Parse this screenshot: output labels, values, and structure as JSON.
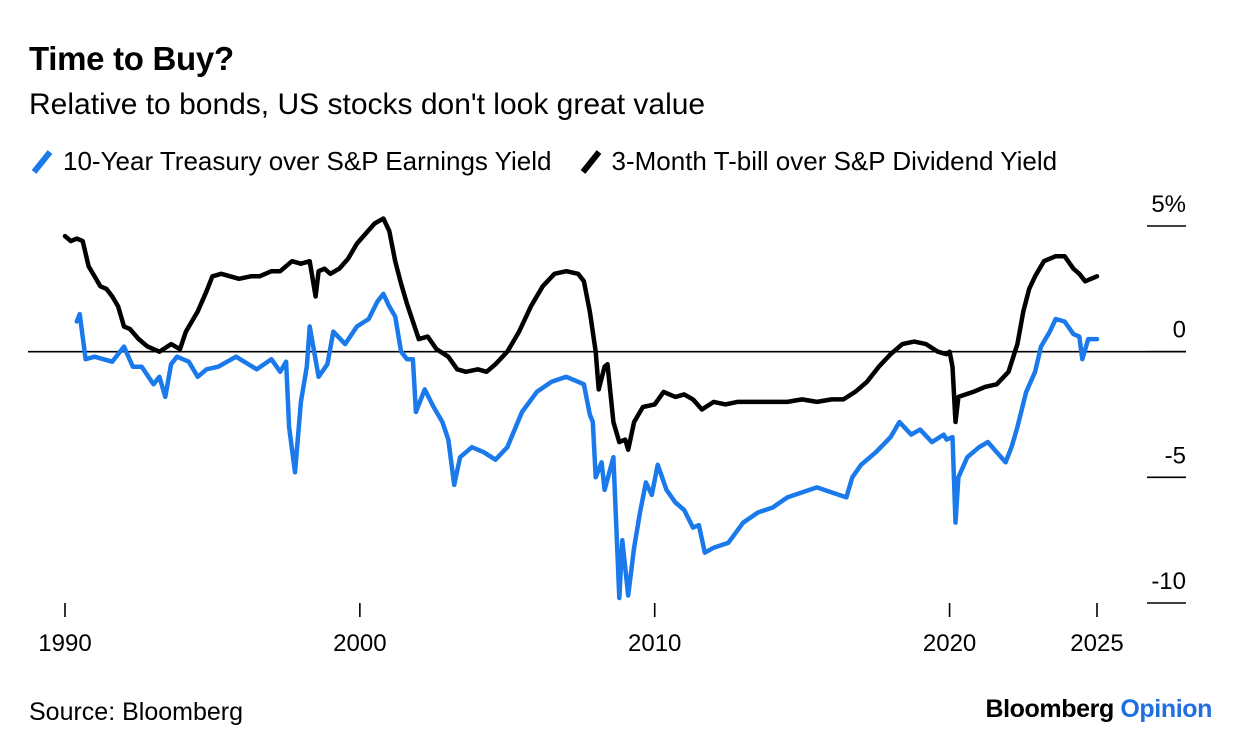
{
  "header": {
    "title": "Time to Buy?",
    "subtitle": "Relative to bonds, US stocks don't look great value"
  },
  "legend": [
    {
      "label": "10-Year Treasury over S&P Earnings Yield",
      "color": "#1a7aeb"
    },
    {
      "label": "3-Month T-bill over S&P Dividend Yield",
      "color": "#000000"
    }
  ],
  "footer": {
    "source": "Source: Bloomberg",
    "brand_primary": "Bloomberg",
    "brand_secondary": "Opinion"
  },
  "chart_data": {
    "type": "line",
    "title": "Time to Buy?",
    "subtitle": "Relative to bonds, US stocks don't look great value",
    "xlabel": "",
    "ylabel": "",
    "xlim": [
      1990,
      2025
    ],
    "ylim": [
      -10,
      5
    ],
    "x_ticks": [
      1990,
      2000,
      2010,
      2020,
      2025
    ],
    "y_ticks": [
      {
        "value": 5,
        "label": "5%"
      },
      {
        "value": 0,
        "label": "0"
      },
      {
        "value": -5,
        "label": "-5"
      },
      {
        "value": -10,
        "label": "-10"
      }
    ],
    "zero_line": true,
    "grid": false,
    "legend_position": "top-left",
    "series": [
      {
        "name": "10-Year Treasury over S&P Earnings Yield",
        "color": "#1a7aeb",
        "points": [
          [
            1990.4,
            1.2
          ],
          [
            1990.5,
            1.5
          ],
          [
            1990.7,
            -0.3
          ],
          [
            1991.0,
            -0.2
          ],
          [
            1991.3,
            -0.3
          ],
          [
            1991.6,
            -0.4
          ],
          [
            1992.0,
            0.2
          ],
          [
            1992.3,
            -0.6
          ],
          [
            1992.6,
            -0.6
          ],
          [
            1993.0,
            -1.3
          ],
          [
            1993.2,
            -1.0
          ],
          [
            1993.4,
            -1.8
          ],
          [
            1993.6,
            -0.5
          ],
          [
            1993.8,
            -0.2
          ],
          [
            1994.2,
            -0.4
          ],
          [
            1994.5,
            -1.0
          ],
          [
            1994.8,
            -0.7
          ],
          [
            1995.2,
            -0.6
          ],
          [
            1995.8,
            -0.2
          ],
          [
            1996.5,
            -0.7
          ],
          [
            1997.0,
            -0.3
          ],
          [
            1997.3,
            -0.8
          ],
          [
            1997.5,
            -0.4
          ],
          [
            1997.6,
            -3.0
          ],
          [
            1997.8,
            -4.8
          ],
          [
            1998.0,
            -2.0
          ],
          [
            1998.2,
            -0.6
          ],
          [
            1998.3,
            1.0
          ],
          [
            1998.6,
            -1.0
          ],
          [
            1998.9,
            -0.5
          ],
          [
            1999.1,
            0.8
          ],
          [
            1999.5,
            0.3
          ],
          [
            1999.9,
            1.0
          ],
          [
            2000.3,
            1.3
          ],
          [
            2000.6,
            2.0
          ],
          [
            2000.8,
            2.3
          ],
          [
            2001.0,
            1.8
          ],
          [
            2001.2,
            1.4
          ],
          [
            2001.4,
            0.0
          ],
          [
            2001.6,
            -0.3
          ],
          [
            2001.8,
            -0.3
          ],
          [
            2001.9,
            -2.4
          ],
          [
            2002.2,
            -1.5
          ],
          [
            2002.5,
            -2.2
          ],
          [
            2002.8,
            -2.8
          ],
          [
            2003.0,
            -3.5
          ],
          [
            2003.2,
            -5.3
          ],
          [
            2003.4,
            -4.2
          ],
          [
            2003.8,
            -3.8
          ],
          [
            2004.2,
            -4.0
          ],
          [
            2004.6,
            -4.3
          ],
          [
            2005.0,
            -3.8
          ],
          [
            2005.5,
            -2.4
          ],
          [
            2006.0,
            -1.6
          ],
          [
            2006.5,
            -1.2
          ],
          [
            2007.0,
            -1.0
          ],
          [
            2007.4,
            -1.2
          ],
          [
            2007.6,
            -1.3
          ],
          [
            2007.8,
            -2.5
          ],
          [
            2007.9,
            -2.8
          ],
          [
            2008.0,
            -5.0
          ],
          [
            2008.2,
            -4.4
          ],
          [
            2008.3,
            -5.5
          ],
          [
            2008.6,
            -4.2
          ],
          [
            2008.8,
            -9.8
          ],
          [
            2008.9,
            -7.5
          ],
          [
            2009.1,
            -9.7
          ],
          [
            2009.3,
            -7.8
          ],
          [
            2009.5,
            -6.4
          ],
          [
            2009.7,
            -5.2
          ],
          [
            2009.9,
            -5.7
          ],
          [
            2010.1,
            -4.5
          ],
          [
            2010.4,
            -5.5
          ],
          [
            2010.7,
            -6.0
          ],
          [
            2011.0,
            -6.3
          ],
          [
            2011.3,
            -7.0
          ],
          [
            2011.5,
            -6.9
          ],
          [
            2011.7,
            -8.0
          ],
          [
            2012.0,
            -7.8
          ],
          [
            2012.5,
            -7.6
          ],
          [
            2013.0,
            -6.8
          ],
          [
            2013.5,
            -6.4
          ],
          [
            2014.0,
            -6.2
          ],
          [
            2014.5,
            -5.8
          ],
          [
            2015.0,
            -5.6
          ],
          [
            2015.5,
            -5.4
          ],
          [
            2016.0,
            -5.6
          ],
          [
            2016.5,
            -5.8
          ],
          [
            2016.7,
            -5.0
          ],
          [
            2017.0,
            -4.5
          ],
          [
            2017.5,
            -4.0
          ],
          [
            2018.0,
            -3.4
          ],
          [
            2018.3,
            -2.8
          ],
          [
            2018.7,
            -3.3
          ],
          [
            2019.0,
            -3.1
          ],
          [
            2019.4,
            -3.6
          ],
          [
            2019.8,
            -3.3
          ],
          [
            2019.9,
            -3.5
          ],
          [
            2020.1,
            -3.4
          ],
          [
            2020.2,
            -6.8
          ],
          [
            2020.3,
            -5.0
          ],
          [
            2020.6,
            -4.2
          ],
          [
            2021.0,
            -3.8
          ],
          [
            2021.3,
            -3.6
          ],
          [
            2021.6,
            -4.0
          ],
          [
            2021.9,
            -4.4
          ],
          [
            2022.1,
            -3.8
          ],
          [
            2022.3,
            -3.0
          ],
          [
            2022.6,
            -1.6
          ],
          [
            2022.9,
            -0.8
          ],
          [
            2023.1,
            0.2
          ],
          [
            2023.4,
            0.8
          ],
          [
            2023.6,
            1.3
          ],
          [
            2023.9,
            1.2
          ],
          [
            2024.2,
            0.7
          ],
          [
            2024.4,
            0.6
          ],
          [
            2024.5,
            -0.3
          ],
          [
            2024.7,
            0.5
          ],
          [
            2025.0,
            0.5
          ]
        ]
      },
      {
        "name": "3-Month T-bill over S&P Dividend Yield",
        "color": "#000000",
        "points": [
          [
            1990.0,
            4.6
          ],
          [
            1990.2,
            4.4
          ],
          [
            1990.4,
            4.5
          ],
          [
            1990.6,
            4.4
          ],
          [
            1990.8,
            3.4
          ],
          [
            1991.0,
            3.0
          ],
          [
            1991.2,
            2.6
          ],
          [
            1991.4,
            2.5
          ],
          [
            1991.6,
            2.2
          ],
          [
            1991.8,
            1.8
          ],
          [
            1992.0,
            1.0
          ],
          [
            1992.2,
            0.9
          ],
          [
            1992.5,
            0.5
          ],
          [
            1992.8,
            0.2
          ],
          [
            1993.2,
            0.0
          ],
          [
            1993.6,
            0.3
          ],
          [
            1993.9,
            0.1
          ],
          [
            1994.1,
            0.8
          ],
          [
            1994.5,
            1.6
          ],
          [
            1994.8,
            2.4
          ],
          [
            1995.0,
            3.0
          ],
          [
            1995.3,
            3.1
          ],
          [
            1995.6,
            3.0
          ],
          [
            1995.9,
            2.9
          ],
          [
            1996.3,
            3.0
          ],
          [
            1996.6,
            3.0
          ],
          [
            1997.0,
            3.2
          ],
          [
            1997.3,
            3.2
          ],
          [
            1997.7,
            3.6
          ],
          [
            1998.0,
            3.5
          ],
          [
            1998.3,
            3.6
          ],
          [
            1998.5,
            2.2
          ],
          [
            1998.6,
            3.2
          ],
          [
            1998.8,
            3.3
          ],
          [
            1999.0,
            3.1
          ],
          [
            1999.3,
            3.3
          ],
          [
            1999.6,
            3.7
          ],
          [
            1999.9,
            4.3
          ],
          [
            2000.2,
            4.7
          ],
          [
            2000.5,
            5.1
          ],
          [
            2000.8,
            5.3
          ],
          [
            2001.0,
            4.8
          ],
          [
            2001.2,
            3.6
          ],
          [
            2001.4,
            2.7
          ],
          [
            2001.6,
            1.9
          ],
          [
            2001.8,
            1.2
          ],
          [
            2002.0,
            0.5
          ],
          [
            2002.3,
            0.6
          ],
          [
            2002.6,
            0.1
          ],
          [
            2003.0,
            -0.2
          ],
          [
            2003.3,
            -0.7
          ],
          [
            2003.6,
            -0.8
          ],
          [
            2004.0,
            -0.7
          ],
          [
            2004.3,
            -0.8
          ],
          [
            2004.6,
            -0.5
          ],
          [
            2005.0,
            0.0
          ],
          [
            2005.4,
            0.8
          ],
          [
            2005.8,
            1.8
          ],
          [
            2006.2,
            2.6
          ],
          [
            2006.6,
            3.1
          ],
          [
            2007.0,
            3.2
          ],
          [
            2007.4,
            3.1
          ],
          [
            2007.6,
            2.8
          ],
          [
            2007.8,
            1.6
          ],
          [
            2008.0,
            0.0
          ],
          [
            2008.1,
            -1.5
          ],
          [
            2008.3,
            -0.6
          ],
          [
            2008.4,
            -0.5
          ],
          [
            2008.6,
            -2.8
          ],
          [
            2008.8,
            -3.6
          ],
          [
            2009.0,
            -3.5
          ],
          [
            2009.1,
            -3.9
          ],
          [
            2009.3,
            -2.8
          ],
          [
            2009.6,
            -2.2
          ],
          [
            2010.0,
            -2.1
          ],
          [
            2010.3,
            -1.6
          ],
          [
            2010.7,
            -1.8
          ],
          [
            2011.0,
            -1.7
          ],
          [
            2011.3,
            -1.9
          ],
          [
            2011.6,
            -2.3
          ],
          [
            2012.0,
            -2.0
          ],
          [
            2012.4,
            -2.1
          ],
          [
            2012.8,
            -2.0
          ],
          [
            2013.2,
            -2.0
          ],
          [
            2013.6,
            -2.0
          ],
          [
            2014.0,
            -2.0
          ],
          [
            2014.5,
            -2.0
          ],
          [
            2015.0,
            -1.9
          ],
          [
            2015.5,
            -2.0
          ],
          [
            2016.0,
            -1.9
          ],
          [
            2016.4,
            -1.9
          ],
          [
            2016.8,
            -1.6
          ],
          [
            2017.2,
            -1.2
          ],
          [
            2017.6,
            -0.6
          ],
          [
            2018.0,
            -0.1
          ],
          [
            2018.4,
            0.3
          ],
          [
            2018.8,
            0.4
          ],
          [
            2019.2,
            0.3
          ],
          [
            2019.6,
            0.0
          ],
          [
            2019.9,
            -0.1
          ],
          [
            2020.0,
            0.0
          ],
          [
            2020.1,
            -0.6
          ],
          [
            2020.2,
            -2.8
          ],
          [
            2020.3,
            -1.8
          ],
          [
            2020.8,
            -1.6
          ],
          [
            2021.2,
            -1.4
          ],
          [
            2021.6,
            -1.3
          ],
          [
            2022.0,
            -0.8
          ],
          [
            2022.3,
            0.3
          ],
          [
            2022.5,
            1.6
          ],
          [
            2022.7,
            2.5
          ],
          [
            2022.9,
            3.0
          ],
          [
            2023.2,
            3.6
          ],
          [
            2023.6,
            3.8
          ],
          [
            2023.9,
            3.8
          ],
          [
            2024.2,
            3.3
          ],
          [
            2024.4,
            3.1
          ],
          [
            2024.6,
            2.8
          ],
          [
            2024.8,
            2.9
          ],
          [
            2025.0,
            3.0
          ]
        ]
      }
    ]
  }
}
